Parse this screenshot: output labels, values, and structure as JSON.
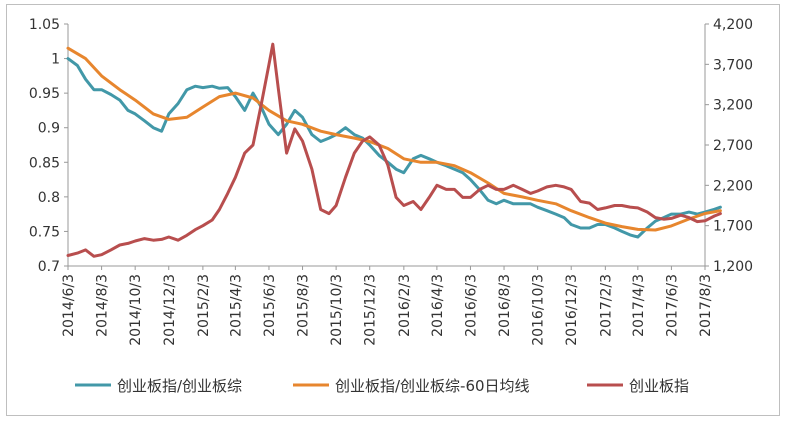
{
  "chart_data": {
    "type": "line",
    "dual_axis": true,
    "x_ticks": [
      "2014/6/3",
      "2014/8/3",
      "2014/10/3",
      "2014/12/3",
      "2015/2/3",
      "2015/4/3",
      "2015/6/3",
      "2015/8/3",
      "2015/10/3",
      "2015/12/3",
      "2016/2/3",
      "2016/4/3",
      "2016/6/3",
      "2016/8/3",
      "2016/10/3",
      "2016/12/3",
      "2017/2/3",
      "2017/4/3",
      "2017/6/3",
      "2017/8/3"
    ],
    "y_left": {
      "min": 0.7,
      "max": 1.05,
      "ticks": [
        "0.7",
        "0.75",
        "0.8",
        "0.85",
        "0.9",
        "0.95",
        "1",
        "1.05"
      ]
    },
    "y_right": {
      "min": 1200,
      "max": 4200,
      "ticks": [
        "1,200",
        "1,700",
        "2,200",
        "2,700",
        "3,200",
        "3,700",
        "4,200"
      ]
    },
    "grid": false,
    "legend_position": "bottom",
    "series": [
      {
        "name": "创业板指/创业板综",
        "axis": "left",
        "color": "#4298a8",
        "points": [
          [
            "2014/6/3",
            1.0
          ],
          [
            "2014/6/20",
            0.99
          ],
          [
            "2014/7/5",
            0.97
          ],
          [
            "2014/7/20",
            0.955
          ],
          [
            "2014/8/3",
            0.955
          ],
          [
            "2014/8/20",
            0.948
          ],
          [
            "2014/9/5",
            0.94
          ],
          [
            "2014/9/20",
            0.925
          ],
          [
            "2014/10/3",
            0.92
          ],
          [
            "2014/10/20",
            0.91
          ],
          [
            "2014/11/5",
            0.9
          ],
          [
            "2014/11/20",
            0.895
          ],
          [
            "2014/12/3",
            0.92
          ],
          [
            "2014/12/20",
            0.935
          ],
          [
            "2015/1/5",
            0.955
          ],
          [
            "2015/1/20",
            0.96
          ],
          [
            "2015/2/3",
            0.958
          ],
          [
            "2015/2/20",
            0.96
          ],
          [
            "2015/3/5",
            0.957
          ],
          [
            "2015/3/20",
            0.958
          ],
          [
            "2015/4/3",
            0.945
          ],
          [
            "2015/4/20",
            0.925
          ],
          [
            "2015/5/5",
            0.95
          ],
          [
            "2015/5/20",
            0.93
          ],
          [
            "2015/6/3",
            0.905
          ],
          [
            "2015/6/20",
            0.89
          ],
          [
            "2015/7/5",
            0.905
          ],
          [
            "2015/7/20",
            0.925
          ],
          [
            "2015/8/3",
            0.915
          ],
          [
            "2015/8/20",
            0.89
          ],
          [
            "2015/9/5",
            0.88
          ],
          [
            "2015/9/20",
            0.885
          ],
          [
            "2015/10/3",
            0.89
          ],
          [
            "2015/10/20",
            0.9
          ],
          [
            "2015/11/5",
            0.89
          ],
          [
            "2015/11/20",
            0.885
          ],
          [
            "2015/12/3",
            0.875
          ],
          [
            "2015/12/20",
            0.86
          ],
          [
            "2016/1/5",
            0.85
          ],
          [
            "2016/1/20",
            0.84
          ],
          [
            "2016/2/3",
            0.835
          ],
          [
            "2016/2/20",
            0.855
          ],
          [
            "2016/3/5",
            0.86
          ],
          [
            "2016/3/20",
            0.855
          ],
          [
            "2016/4/3",
            0.85
          ],
          [
            "2016/4/20",
            0.845
          ],
          [
            "2016/5/5",
            0.84
          ],
          [
            "2016/5/20",
            0.835
          ],
          [
            "2016/6/3",
            0.825
          ],
          [
            "2016/6/20",
            0.81
          ],
          [
            "2016/7/5",
            0.795
          ],
          [
            "2016/7/20",
            0.79
          ],
          [
            "2016/8/3",
            0.795
          ],
          [
            "2016/8/20",
            0.79
          ],
          [
            "2016/9/5",
            0.79
          ],
          [
            "2016/9/20",
            0.79
          ],
          [
            "2016/10/3",
            0.785
          ],
          [
            "2016/10/20",
            0.78
          ],
          [
            "2016/11/5",
            0.775
          ],
          [
            "2016/11/20",
            0.77
          ],
          [
            "2016/12/3",
            0.76
          ],
          [
            "2016/12/20",
            0.755
          ],
          [
            "2017/1/5",
            0.755
          ],
          [
            "2017/1/20",
            0.76
          ],
          [
            "2017/2/3",
            0.76
          ],
          [
            "2017/2/20",
            0.755
          ],
          [
            "2017/3/5",
            0.75
          ],
          [
            "2017/3/20",
            0.745
          ],
          [
            "2017/4/3",
            0.742
          ],
          [
            "2017/4/20",
            0.755
          ],
          [
            "2017/5/5",
            0.765
          ],
          [
            "2017/5/20",
            0.77
          ],
          [
            "2017/6/3",
            0.775
          ],
          [
            "2017/6/20",
            0.775
          ],
          [
            "2017/7/5",
            0.778
          ],
          [
            "2017/7/20",
            0.775
          ],
          [
            "2017/8/3",
            0.778
          ],
          [
            "2017/8/20",
            0.782
          ],
          [
            "2017/8/31",
            0.785
          ]
        ]
      },
      {
        "name": "创业板指/创业板综-60日均线",
        "axis": "left",
        "color": "#e7862e",
        "points": [
          [
            "2014/6/3",
            1.015
          ],
          [
            "2014/7/5",
            1.0
          ],
          [
            "2014/8/3",
            0.975
          ],
          [
            "2014/9/5",
            0.955
          ],
          [
            "2014/10/3",
            0.94
          ],
          [
            "2014/11/5",
            0.92
          ],
          [
            "2014/12/3",
            0.912
          ],
          [
            "2015/1/5",
            0.915
          ],
          [
            "2015/2/3",
            0.93
          ],
          [
            "2015/3/5",
            0.945
          ],
          [
            "2015/4/3",
            0.95
          ],
          [
            "2015/5/5",
            0.943
          ],
          [
            "2015/6/3",
            0.925
          ],
          [
            "2015/7/5",
            0.91
          ],
          [
            "2015/8/3",
            0.905
          ],
          [
            "2015/9/5",
            0.895
          ],
          [
            "2015/10/3",
            0.89
          ],
          [
            "2015/11/5",
            0.885
          ],
          [
            "2015/12/3",
            0.88
          ],
          [
            "2016/1/5",
            0.87
          ],
          [
            "2016/2/3",
            0.855
          ],
          [
            "2016/3/5",
            0.85
          ],
          [
            "2016/4/3",
            0.85
          ],
          [
            "2016/5/5",
            0.845
          ],
          [
            "2016/6/3",
            0.835
          ],
          [
            "2016/7/5",
            0.82
          ],
          [
            "2016/8/3",
            0.805
          ],
          [
            "2016/9/5",
            0.8
          ],
          [
            "2016/10/3",
            0.795
          ],
          [
            "2016/11/5",
            0.79
          ],
          [
            "2016/12/3",
            0.78
          ],
          [
            "2017/1/5",
            0.77
          ],
          [
            "2017/2/3",
            0.762
          ],
          [
            "2017/3/5",
            0.757
          ],
          [
            "2017/4/3",
            0.753
          ],
          [
            "2017/5/5",
            0.752
          ],
          [
            "2017/6/3",
            0.758
          ],
          [
            "2017/7/5",
            0.768
          ],
          [
            "2017/8/3",
            0.776
          ],
          [
            "2017/8/31",
            0.78
          ]
        ]
      },
      {
        "name": "创业板指",
        "axis": "right",
        "color": "#b84e4e",
        "points": [
          [
            "2014/6/3",
            1330
          ],
          [
            "2014/6/20",
            1360
          ],
          [
            "2014/7/5",
            1400
          ],
          [
            "2014/7/20",
            1320
          ],
          [
            "2014/8/3",
            1340
          ],
          [
            "2014/8/20",
            1400
          ],
          [
            "2014/9/5",
            1460
          ],
          [
            "2014/9/20",
            1480
          ],
          [
            "2014/10/3",
            1510
          ],
          [
            "2014/10/20",
            1540
          ],
          [
            "2014/11/5",
            1520
          ],
          [
            "2014/11/20",
            1530
          ],
          [
            "2014/12/3",
            1560
          ],
          [
            "2014/12/20",
            1520
          ],
          [
            "2015/1/5",
            1580
          ],
          [
            "2015/1/20",
            1650
          ],
          [
            "2015/2/3",
            1700
          ],
          [
            "2015/2/20",
            1770
          ],
          [
            "2015/3/5",
            1900
          ],
          [
            "2015/3/20",
            2100
          ],
          [
            "2015/4/3",
            2300
          ],
          [
            "2015/4/20",
            2600
          ],
          [
            "2015/5/5",
            2700
          ],
          [
            "2015/5/20",
            3200
          ],
          [
            "2015/6/3",
            3700
          ],
          [
            "2015/6/10",
            3950
          ],
          [
            "2015/6/20",
            3400
          ],
          [
            "2015/7/5",
            2600
          ],
          [
            "2015/7/20",
            2900
          ],
          [
            "2015/8/3",
            2750
          ],
          [
            "2015/8/20",
            2400
          ],
          [
            "2015/9/5",
            1900
          ],
          [
            "2015/9/20",
            1850
          ],
          [
            "2015/10/3",
            1950
          ],
          [
            "2015/10/20",
            2300
          ],
          [
            "2015/11/5",
            2600
          ],
          [
            "2015/11/20",
            2750
          ],
          [
            "2015/12/3",
            2800
          ],
          [
            "2015/12/20",
            2700
          ],
          [
            "2016/1/5",
            2450
          ],
          [
            "2016/1/20",
            2050
          ],
          [
            "2016/2/3",
            1950
          ],
          [
            "2016/2/20",
            2000
          ],
          [
            "2016/3/5",
            1900
          ],
          [
            "2016/3/20",
            2050
          ],
          [
            "2016/4/3",
            2200
          ],
          [
            "2016/4/20",
            2150
          ],
          [
            "2016/5/5",
            2150
          ],
          [
            "2016/5/20",
            2050
          ],
          [
            "2016/6/3",
            2050
          ],
          [
            "2016/6/20",
            2150
          ],
          [
            "2016/7/5",
            2200
          ],
          [
            "2016/7/20",
            2150
          ],
          [
            "2016/8/3",
            2150
          ],
          [
            "2016/8/20",
            2200
          ],
          [
            "2016/9/5",
            2150
          ],
          [
            "2016/9/20",
            2100
          ],
          [
            "2016/10/3",
            2130
          ],
          [
            "2016/10/20",
            2180
          ],
          [
            "2016/11/5",
            2200
          ],
          [
            "2016/11/20",
            2180
          ],
          [
            "2016/12/3",
            2150
          ],
          [
            "2016/12/20",
            2000
          ],
          [
            "2017/1/5",
            1980
          ],
          [
            "2017/1/20",
            1900
          ],
          [
            "2017/2/3",
            1920
          ],
          [
            "2017/2/20",
            1950
          ],
          [
            "2017/3/5",
            1950
          ],
          [
            "2017/3/20",
            1930
          ],
          [
            "2017/4/3",
            1920
          ],
          [
            "2017/4/20",
            1870
          ],
          [
            "2017/5/5",
            1800
          ],
          [
            "2017/5/20",
            1780
          ],
          [
            "2017/6/3",
            1790
          ],
          [
            "2017/6/20",
            1830
          ],
          [
            "2017/7/5",
            1800
          ],
          [
            "2017/7/20",
            1750
          ],
          [
            "2017/8/3",
            1760
          ],
          [
            "2017/8/20",
            1820
          ],
          [
            "2017/8/31",
            1850
          ]
        ]
      }
    ]
  }
}
